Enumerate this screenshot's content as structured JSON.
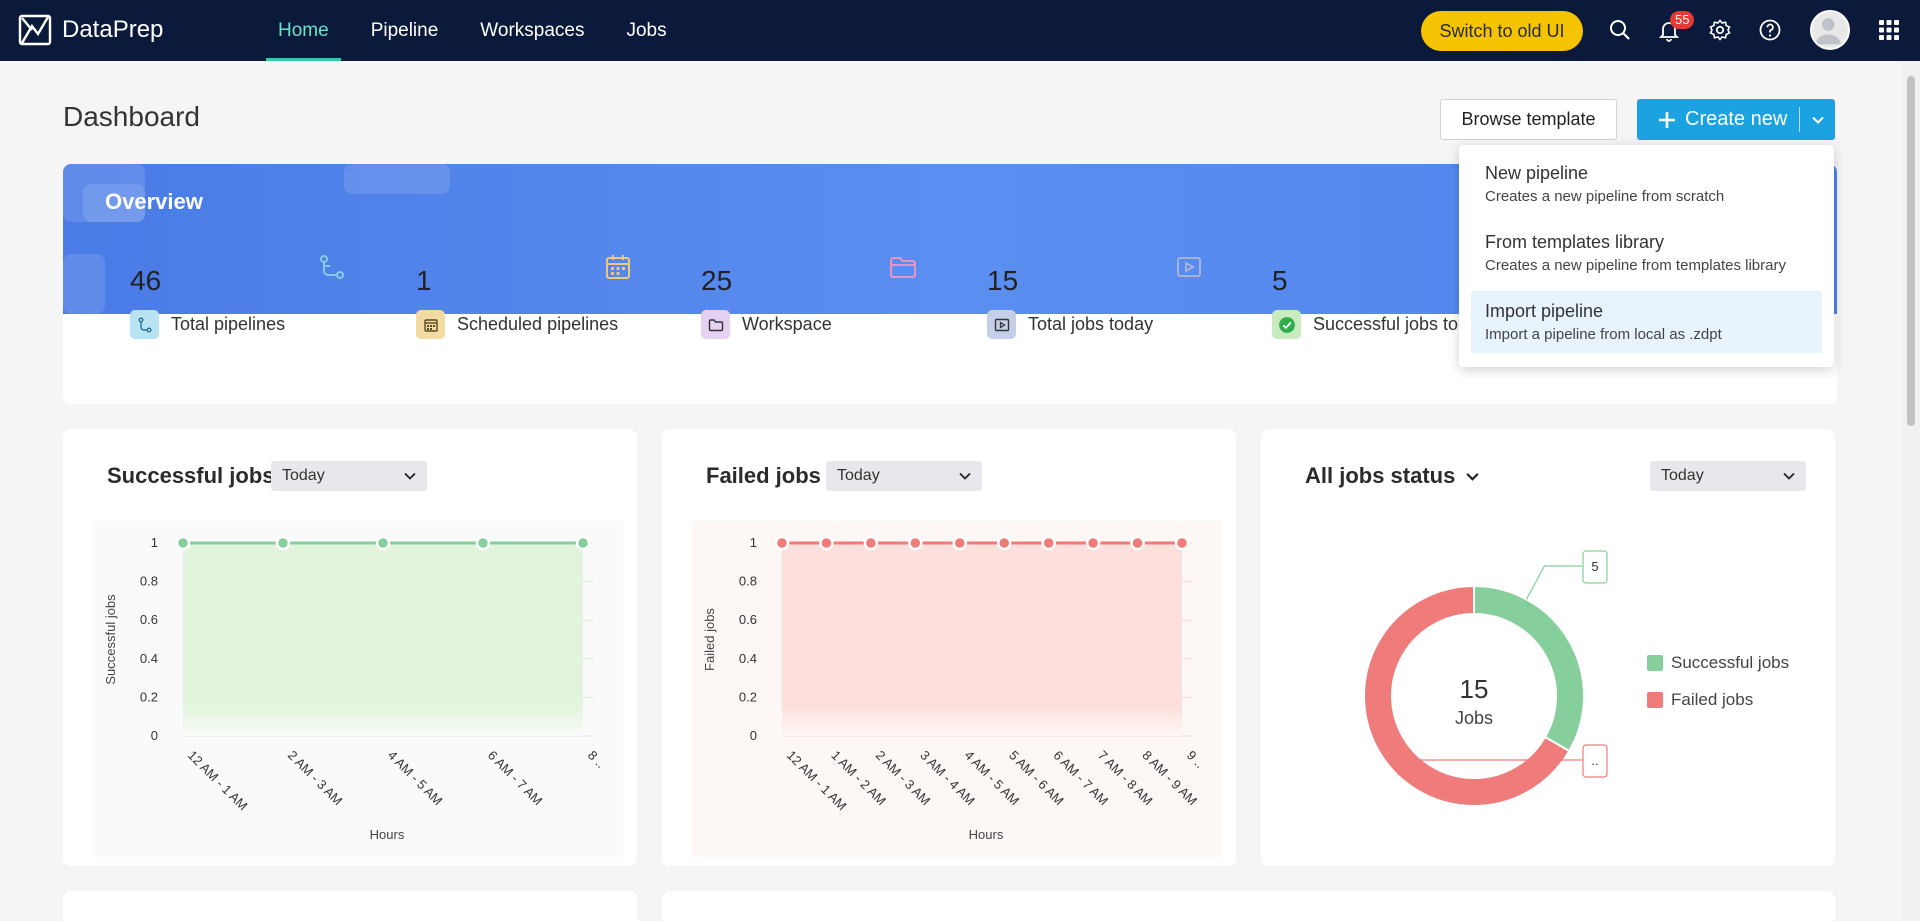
{
  "app": {
    "name": "DataPrep"
  },
  "nav": [
    {
      "label": "Home",
      "active": true
    },
    {
      "label": "Pipeline",
      "active": false
    },
    {
      "label": "Workspaces",
      "active": false
    },
    {
      "label": "Jobs",
      "active": false
    }
  ],
  "topbar": {
    "old_ui_label": "Switch to old UI",
    "notification_count": "55",
    "icons": [
      "search-icon",
      "bell-icon",
      "gear-icon",
      "help-icon",
      "avatar",
      "apps-grid-icon"
    ]
  },
  "page": {
    "title": "Dashboard",
    "browse_label": "Browse template",
    "create_label": "Create new"
  },
  "overview": {
    "title": "Overview",
    "stats": [
      {
        "value": "46",
        "label": "Total pipelines",
        "icon": "pipeline-icon",
        "bg": "#d7f2fb",
        "icon_color": "#3a9ec9"
      },
      {
        "value": "1",
        "label": "Scheduled pipelines",
        "icon": "calendar-icon",
        "bg": "#fbefcf",
        "icon_color": "#d9a23a"
      },
      {
        "value": "25",
        "label": "Workspace",
        "icon": "folder-icon",
        "bg": "#f0e3f8",
        "icon_color": "#e07bb0"
      },
      {
        "value": "15",
        "label": "Total jobs today",
        "icon": "play-box-icon",
        "bg": "#dfe5f8",
        "icon_color": "#7f8fbf"
      },
      {
        "value": "5",
        "label": "Successful jobs today",
        "icon": "check-circle-icon",
        "bg": "#e4f5dc",
        "icon_color": "#2fae4a"
      }
    ]
  },
  "create_menu": [
    {
      "title": "New pipeline",
      "desc": "Creates a new pipeline from scratch",
      "active": false
    },
    {
      "title": "From templates library",
      "desc": "Creates a new pipeline from templates library",
      "active": false
    },
    {
      "title": "Import pipeline",
      "desc": "Import a pipeline from local as .zdpt",
      "active": true
    }
  ],
  "cards": {
    "successful": {
      "title": "Successful jobs",
      "range": "Today"
    },
    "failed": {
      "title": "Failed jobs",
      "range": "Today"
    },
    "status": {
      "title": "All jobs status",
      "range": "Today"
    }
  },
  "colors": {
    "success": "#86cf9c",
    "failed": "#ef7b7b",
    "accent": "#1aa3e0",
    "topbar": "#0b1a3a"
  },
  "chart_data": [
    {
      "type": "area",
      "title": "Successful jobs",
      "xlabel": "Hours",
      "ylabel": "Successful jobs",
      "categories": [
        "12 AM - 1 AM",
        "2 AM - 3 AM",
        "4 AM - 5 AM",
        "6 AM - 7 AM",
        "8 .."
      ],
      "values": [
        1,
        1,
        1,
        1,
        1
      ],
      "yticks": [
        "0",
        "0.2",
        "0.4",
        "0.6",
        "0.8",
        "1"
      ],
      "ylim": [
        0,
        1
      ],
      "color": "#86cf9c"
    },
    {
      "type": "area",
      "title": "Failed jobs",
      "xlabel": "Hours",
      "ylabel": "Failed jobs",
      "categories": [
        "12 AM - 1 AM",
        "1 AM - 2 AM",
        "2 AM - 3 AM",
        "3 AM - 4 AM",
        "4 AM - 5 AM",
        "5 AM - 6 AM",
        "6 AM - 7 AM",
        "7 AM - 8 AM",
        "8 AM - 9 AM",
        "9 .."
      ],
      "values": [
        1,
        1,
        1,
        1,
        1,
        1,
        1,
        1,
        1,
        1
      ],
      "yticks": [
        "0",
        "0.2",
        "0.4",
        "0.6",
        "0.8",
        "1"
      ],
      "ylim": [
        0,
        1
      ],
      "color": "#ef7b7b"
    },
    {
      "type": "pie",
      "title": "All jobs status",
      "center_value": "15",
      "center_label": "Jobs",
      "series": [
        {
          "name": "Successful jobs",
          "value": 5,
          "label": "5",
          "color": "#86cf9c"
        },
        {
          "name": "Failed jobs",
          "value": 10,
          "label": "..",
          "color": "#ef7b7b"
        }
      ]
    }
  ]
}
